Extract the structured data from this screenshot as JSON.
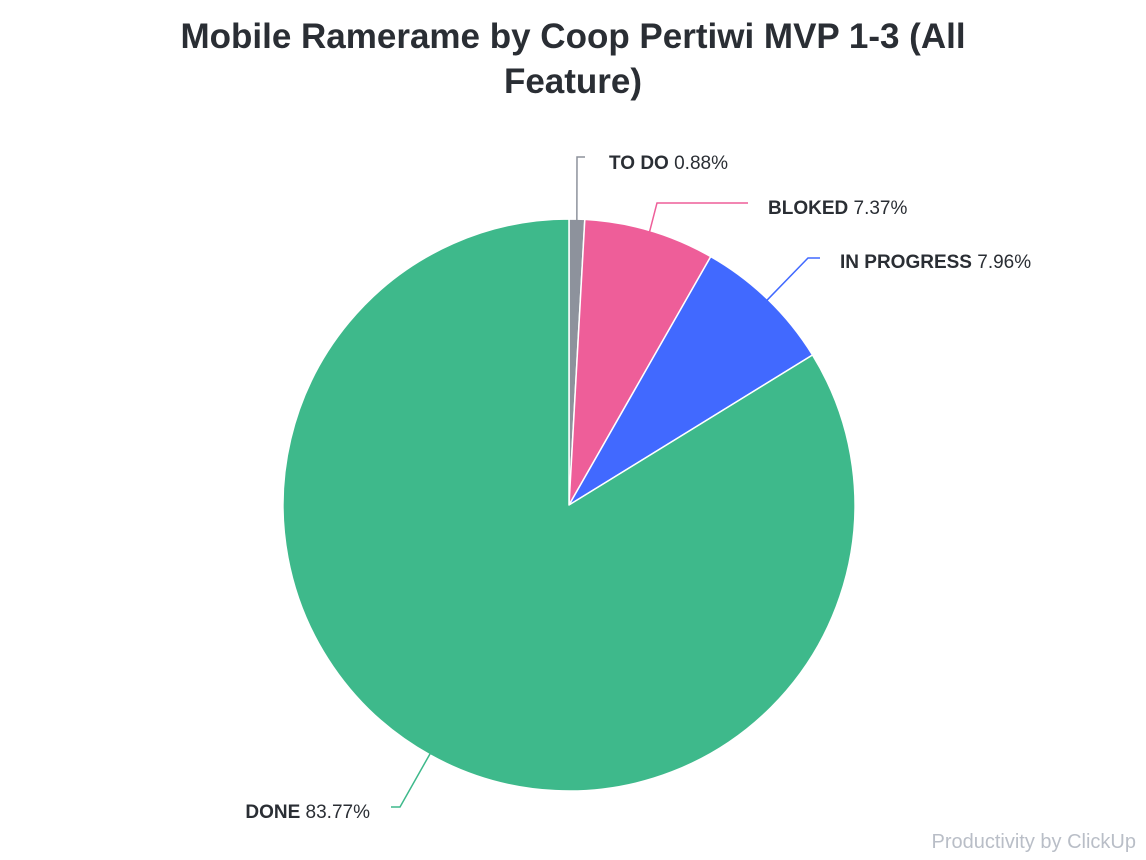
{
  "chart_data": {
    "type": "pie",
    "title": "Mobile Ramerame by Coop Pertiwi MVP 1-3 (All Feature)",
    "start_angle_deg": 0,
    "direction": "clockwise",
    "slices": [
      {
        "key": "todo",
        "label": "TO DO",
        "value": 0.88,
        "display": "0.88%",
        "color": "#8d929c",
        "label_side": "right"
      },
      {
        "key": "bloked",
        "label": "BLOKED",
        "value": 7.37,
        "display": "7.37%",
        "color": "#ee5e99",
        "label_side": "right"
      },
      {
        "key": "inprogress",
        "label": "IN PROGRESS",
        "value": 7.96,
        "display": "7.96%",
        "color": "#4169ff",
        "label_side": "right"
      },
      {
        "key": "done",
        "label": "DONE",
        "value": 83.77,
        "display": "83.77%",
        "color": "#3eb98b",
        "label_side": "left"
      }
    ]
  },
  "credit": "Productivity by ClickUp"
}
